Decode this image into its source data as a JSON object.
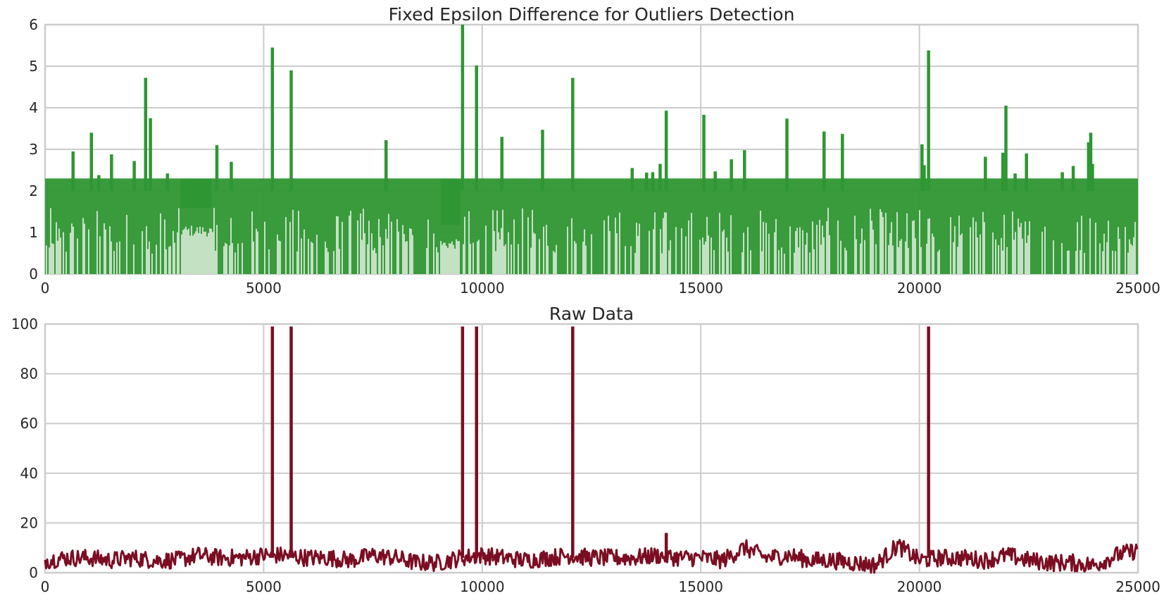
{
  "chart_data": [
    {
      "type": "line",
      "title": "Fixed Epsilon Difference for Outliers Detection",
      "xlabel": "",
      "ylabel": "",
      "xlim": [
        0,
        25000
      ],
      "ylim": [
        0,
        6
      ],
      "xticks": [
        "0",
        "5000",
        "10000",
        "15000",
        "20000",
        "25000"
      ],
      "yticks": [
        "0",
        "1",
        "2",
        "3",
        "4",
        "5",
        "6"
      ],
      "grid": true,
      "line_color": "#2e9632",
      "band": {
        "min": 0,
        "max": 2.3,
        "x_range": [
          0,
          25000
        ]
      },
      "spikes": [
        {
          "x": 640,
          "y": 2.95
        },
        {
          "x": 1060,
          "y": 3.4
        },
        {
          "x": 1230,
          "y": 2.38
        },
        {
          "x": 1520,
          "y": 2.88
        },
        {
          "x": 2040,
          "y": 2.72
        },
        {
          "x": 2300,
          "y": 4.72
        },
        {
          "x": 2410,
          "y": 3.75
        },
        {
          "x": 2800,
          "y": 2.42
        },
        {
          "x": 3930,
          "y": 3.1
        },
        {
          "x": 4260,
          "y": 2.7
        },
        {
          "x": 5200,
          "y": 5.45
        },
        {
          "x": 5630,
          "y": 4.9
        },
        {
          "x": 7800,
          "y": 3.22
        },
        {
          "x": 9550,
          "y": 6.0
        },
        {
          "x": 9870,
          "y": 5.02
        },
        {
          "x": 10450,
          "y": 3.3
        },
        {
          "x": 11380,
          "y": 3.47
        },
        {
          "x": 12070,
          "y": 4.72
        },
        {
          "x": 13430,
          "y": 2.55
        },
        {
          "x": 13760,
          "y": 2.44
        },
        {
          "x": 13900,
          "y": 2.45
        },
        {
          "x": 14070,
          "y": 2.65
        },
        {
          "x": 14210,
          "y": 3.93
        },
        {
          "x": 15070,
          "y": 3.83
        },
        {
          "x": 15330,
          "y": 2.47
        },
        {
          "x": 15700,
          "y": 2.76
        },
        {
          "x": 16000,
          "y": 2.98
        },
        {
          "x": 16970,
          "y": 3.74
        },
        {
          "x": 17820,
          "y": 3.43
        },
        {
          "x": 18240,
          "y": 3.37
        },
        {
          "x": 20060,
          "y": 3.12
        },
        {
          "x": 20110,
          "y": 2.62
        },
        {
          "x": 20210,
          "y": 5.38
        },
        {
          "x": 21510,
          "y": 2.82
        },
        {
          "x": 21910,
          "y": 2.92
        },
        {
          "x": 21980,
          "y": 4.05
        },
        {
          "x": 22190,
          "y": 2.42
        },
        {
          "x": 22450,
          "y": 2.9
        },
        {
          "x": 23270,
          "y": 2.45
        },
        {
          "x": 23520,
          "y": 2.6
        },
        {
          "x": 23870,
          "y": 3.17
        },
        {
          "x": 23920,
          "y": 3.4
        },
        {
          "x": 23960,
          "y": 2.65
        }
      ],
      "smooth_regions": [
        {
          "x_start": 3100,
          "x_end": 3800,
          "low": 0.9,
          "high": 1.6
        },
        {
          "x_start": 9050,
          "x_end": 9500,
          "low": 0.6,
          "high": 1.2
        }
      ]
    },
    {
      "type": "line",
      "title": "Raw Data",
      "xlabel": "",
      "ylabel": "",
      "xlim": [
        0,
        25000
      ],
      "ylim": [
        0,
        100
      ],
      "xticks": [
        "0",
        "5000",
        "10000",
        "15000",
        "20000",
        "25000"
      ],
      "yticks": [
        "0",
        "20",
        "40",
        "60",
        "80",
        "100"
      ],
      "grid": true,
      "line_color": "#7b0d22",
      "baseline": [
        {
          "x": 0,
          "y": 5
        },
        {
          "x": 500,
          "y": 6
        },
        {
          "x": 1000,
          "y": 6
        },
        {
          "x": 1500,
          "y": 5
        },
        {
          "x": 2000,
          "y": 6
        },
        {
          "x": 2500,
          "y": 5
        },
        {
          "x": 3000,
          "y": 5
        },
        {
          "x": 3500,
          "y": 7
        },
        {
          "x": 4000,
          "y": 6
        },
        {
          "x": 4500,
          "y": 6
        },
        {
          "x": 5000,
          "y": 7
        },
        {
          "x": 5500,
          "y": 7
        },
        {
          "x": 6000,
          "y": 6
        },
        {
          "x": 6500,
          "y": 6
        },
        {
          "x": 7000,
          "y": 5
        },
        {
          "x": 7500,
          "y": 7
        },
        {
          "x": 8000,
          "y": 6
        },
        {
          "x": 8500,
          "y": 4
        },
        {
          "x": 9000,
          "y": 4
        },
        {
          "x": 9500,
          "y": 6
        },
        {
          "x": 10000,
          "y": 7
        },
        {
          "x": 10500,
          "y": 6
        },
        {
          "x": 11000,
          "y": 5
        },
        {
          "x": 11500,
          "y": 6
        },
        {
          "x": 12000,
          "y": 7
        },
        {
          "x": 12500,
          "y": 6
        },
        {
          "x": 13000,
          "y": 6
        },
        {
          "x": 13500,
          "y": 6
        },
        {
          "x": 14000,
          "y": 7
        },
        {
          "x": 14500,
          "y": 6
        },
        {
          "x": 15000,
          "y": 6
        },
        {
          "x": 15500,
          "y": 5
        },
        {
          "x": 16000,
          "y": 10
        },
        {
          "x": 16500,
          "y": 6
        },
        {
          "x": 17000,
          "y": 7
        },
        {
          "x": 17500,
          "y": 5
        },
        {
          "x": 18000,
          "y": 5
        },
        {
          "x": 18500,
          "y": 4
        },
        {
          "x": 19000,
          "y": 3
        },
        {
          "x": 19500,
          "y": 11
        },
        {
          "x": 20000,
          "y": 5
        },
        {
          "x": 20500,
          "y": 6
        },
        {
          "x": 21000,
          "y": 6
        },
        {
          "x": 21500,
          "y": 5
        },
        {
          "x": 22000,
          "y": 7
        },
        {
          "x": 22500,
          "y": 5
        },
        {
          "x": 23000,
          "y": 4
        },
        {
          "x": 23500,
          "y": 4
        },
        {
          "x": 24000,
          "y": 3
        },
        {
          "x": 24500,
          "y": 7
        },
        {
          "x": 25000,
          "y": 9
        }
      ],
      "spikes": [
        {
          "x": 5200,
          "y": 99
        },
        {
          "x": 5630,
          "y": 99
        },
        {
          "x": 9550,
          "y": 99
        },
        {
          "x": 9870,
          "y": 99
        },
        {
          "x": 12070,
          "y": 99
        },
        {
          "x": 14210,
          "y": 16
        },
        {
          "x": 20210,
          "y": 99
        }
      ]
    }
  ]
}
